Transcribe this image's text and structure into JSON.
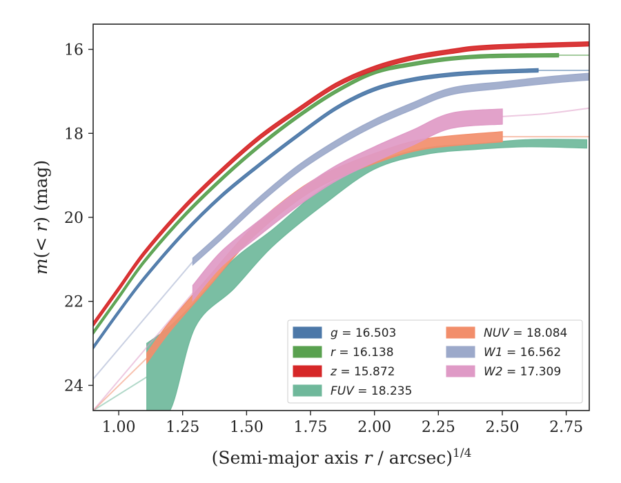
{
  "chart_data": {
    "type": "line",
    "xlabel": "(Semi-major axis r / arcsec)^1/4",
    "ylabel": "m(< r) (mag)",
    "xlim": [
      0.9,
      2.84
    ],
    "ylim": [
      24.6,
      15.4
    ],
    "y_inverted": true,
    "x_ticks": [
      "1.00",
      "1.25",
      "1.50",
      "1.75",
      "2.00",
      "2.25",
      "2.50",
      "2.75"
    ],
    "y_ticks": [
      "16",
      "18",
      "20",
      "22",
      "24"
    ],
    "legend_position": "lower-right",
    "grid": false,
    "series": [
      {
        "key": "g",
        "label": "g = 16.503",
        "color": "#4c78a8",
        "x": [
          0.9,
          1.0,
          1.1,
          1.25,
          1.4,
          1.55,
          1.7,
          1.85,
          2.0,
          2.15,
          2.3,
          2.45,
          2.64
        ],
        "y": [
          23.1,
          22.25,
          21.45,
          20.4,
          19.5,
          18.75,
          18.05,
          17.4,
          16.95,
          16.72,
          16.6,
          16.54,
          16.5
        ],
        "half_width": 0.04,
        "faint_to": 2.84
      },
      {
        "key": "r",
        "label": "r = 16.138",
        "color": "#59a14f",
        "x": [
          0.9,
          1.0,
          1.1,
          1.25,
          1.4,
          1.55,
          1.7,
          1.85,
          2.0,
          2.15,
          2.3,
          2.45,
          2.72
        ],
        "y": [
          22.75,
          21.9,
          21.05,
          20.0,
          19.1,
          18.3,
          17.6,
          17.0,
          16.55,
          16.35,
          16.22,
          16.16,
          16.14
        ],
        "half_width": 0.04,
        "faint_to": 2.84
      },
      {
        "key": "z",
        "label": "z = 15.872",
        "color": "#d62728",
        "x": [
          0.9,
          1.0,
          1.1,
          1.25,
          1.4,
          1.55,
          1.7,
          1.85,
          2.0,
          2.15,
          2.3,
          2.45,
          2.84
        ],
        "y": [
          22.55,
          21.7,
          20.85,
          19.8,
          18.9,
          18.1,
          17.45,
          16.85,
          16.45,
          16.2,
          16.05,
          15.95,
          15.87
        ],
        "half_width": 0.05,
        "faint_to": null
      },
      {
        "key": "FUV",
        "label": "FUV = 18.235",
        "color": "#6fb89b",
        "x": [
          1.11,
          1.2,
          1.3,
          1.45,
          1.6,
          1.8,
          2.0,
          2.2,
          2.4,
          2.6,
          2.83
        ],
        "y_upper": [
          23.0,
          22.6,
          22.0,
          21.0,
          20.3,
          19.3,
          18.7,
          18.35,
          18.25,
          18.15,
          18.15
        ],
        "y_lower": [
          24.6,
          24.6,
          22.6,
          21.7,
          20.7,
          19.7,
          18.85,
          18.5,
          18.38,
          18.32,
          18.35
        ],
        "faint_from": 0.9,
        "faint_y": 24.6
      },
      {
        "key": "NUV",
        "label": "NUV = 18.084",
        "color": "#f28e6b",
        "x": [
          1.11,
          1.2,
          1.35,
          1.5,
          1.65,
          1.8,
          2.0,
          2.2,
          2.5
        ],
        "y": [
          23.35,
          22.6,
          21.55,
          20.5,
          19.7,
          19.1,
          18.6,
          18.25,
          18.08
        ],
        "half_width": 0.12,
        "faint_to": 2.84,
        "faint_from": 0.9,
        "faint_y": 24.6
      },
      {
        "key": "W1",
        "label": "W1 = 16.562",
        "color": "#9ca9ca",
        "x": [
          1.29,
          1.4,
          1.55,
          1.7,
          1.85,
          2.0,
          2.15,
          2.3,
          2.5,
          2.7,
          2.84
        ],
        "y": [
          21.05,
          20.45,
          19.6,
          18.85,
          18.25,
          17.75,
          17.35,
          17.0,
          16.85,
          16.72,
          16.65
        ],
        "half_width": 0.08,
        "faint_from": 0.9,
        "faint_y": 23.85
      },
      {
        "key": "W2",
        "label": "W2 = 17.309",
        "color": "#df9ac6",
        "x": [
          1.29,
          1.4,
          1.55,
          1.7,
          1.85,
          2.0,
          2.15,
          2.3,
          2.5
        ],
        "y": [
          21.8,
          21.0,
          20.25,
          19.55,
          18.95,
          18.5,
          18.1,
          17.7,
          17.6
        ],
        "half_width": 0.18,
        "faint_to": 2.84,
        "faint_end_y": 17.4,
        "faint_from": 0.9,
        "faint_y": 24.6
      }
    ],
    "legend": [
      {
        "key": "g",
        "label_main": "g",
        "value": "= 16.503"
      },
      {
        "key": "r",
        "label_main": "r",
        "value": "= 16.138"
      },
      {
        "key": "z",
        "label_main": "z",
        "value": "= 15.872"
      },
      {
        "key": "FUV",
        "label_main": "FUV",
        "value": "= 18.235"
      },
      {
        "key": "NUV",
        "label_main": "NUV",
        "value": "= 18.084"
      },
      {
        "key": "W1",
        "label_main": "W1",
        "value": "= 16.562"
      },
      {
        "key": "W2",
        "label_main": "W2",
        "value": "= 17.309"
      }
    ]
  }
}
